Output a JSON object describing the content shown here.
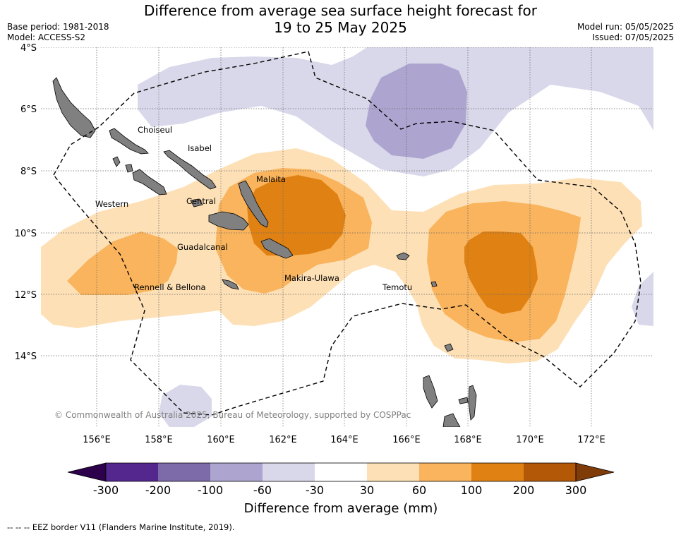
{
  "title_line1": "Difference from average sea surface height forecast for",
  "title_line2": "19 to 25 May 2025",
  "base_period": "Base period: 1981-2018",
  "model": "Model: ACCESS-S2",
  "model_run": "Model run: 05/05/2025",
  "issued": "Issued: 07/05/2025",
  "lat_labels": [
    "4°S",
    "6°S",
    "8°S",
    "10°S",
    "12°S",
    "14°S"
  ],
  "lon_labels": [
    "156°E",
    "158°E",
    "160°E",
    "162°E",
    "164°E",
    "166°E",
    "168°E",
    "170°E",
    "172°E"
  ],
  "places": {
    "choiseul": "Choiseul",
    "isabel": "Isabel",
    "malaita": "Malaita",
    "western": "Western",
    "central": "Central",
    "guadalcanal": "Guadalcanal",
    "rennell": "Rennell & Bellona",
    "makira": "Makira-Ulawa",
    "temotu": "Temotu"
  },
  "copyright": "© Commonwealth of Australia 2025, Bureau of Meteorology, supported by COSPPac",
  "colorbar": {
    "title": "Difference from average (mm)",
    "ticks": [
      "-300",
      "-200",
      "-100",
      "-60",
      "-30",
      "30",
      "60",
      "100",
      "200",
      "300"
    ],
    "colors": [
      "#54278f",
      "#7d6aa8",
      "#ada5cf",
      "#d8d8ea",
      "#ffffff",
      "#fde0b6",
      "#f9b45d",
      "#e08213",
      "#b35806"
    ],
    "extend_low": "#2d004b",
    "extend_high": "#7f3b08"
  },
  "footer": "--  --  -- EEZ border V11 (Flanders Marine Institute, 2019)."
}
